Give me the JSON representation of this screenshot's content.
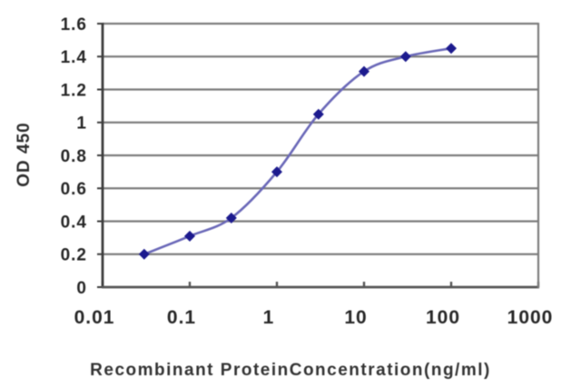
{
  "chart_data": {
    "type": "line",
    "title": "",
    "xlabel": "Recombinant ProteinConcentration(ng/ml)",
    "ylabel": "OD 450",
    "x_scale": "log",
    "x": [
      0.03,
      0.1,
      0.3,
      1,
      3,
      10,
      30,
      100
    ],
    "y": [
      0.2,
      0.31,
      0.42,
      0.7,
      1.05,
      1.31,
      1.4,
      1.45
    ],
    "xlim": [
      0.01,
      1000
    ],
    "ylim": [
      0,
      1.6
    ],
    "x_ticks": [
      0.01,
      0.1,
      1,
      10,
      100,
      1000
    ],
    "x_tick_labels": [
      "0.01",
      "0.1",
      "1",
      "10",
      "100",
      "1000"
    ],
    "y_ticks": [
      0,
      0.2,
      0.4,
      0.6,
      0.8,
      1,
      1.2,
      1.4,
      1.6
    ],
    "y_tick_labels": [
      "0",
      "0.2",
      "0.4",
      "0.6",
      "0.8",
      "1",
      "1.2",
      "1.4",
      "1.6"
    ],
    "grid": "horizontal",
    "legend": "none",
    "marker": "diamond",
    "line_style": "smooth",
    "colors": {
      "marker": "#1c1a8e",
      "line": "#6a68b8",
      "grid": "#7d7d7d",
      "axis_left": "#3d3d3d",
      "axis_bottom": "#565656",
      "axis_right": "#7d7d7d",
      "tick_text": "#262626"
    }
  }
}
